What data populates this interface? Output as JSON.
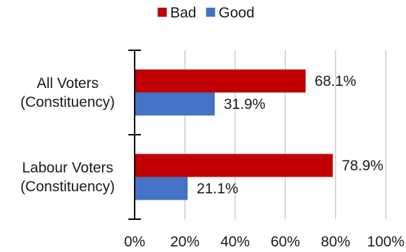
{
  "chart_data": {
    "type": "bar",
    "orientation": "horizontal",
    "categories": [
      [
        "All Voters",
        "(Constituency)"
      ],
      [
        "Labour Voters",
        "(Constituency)"
      ]
    ],
    "series": [
      {
        "name": "Bad",
        "color": "#c00000",
        "values": [
          68.1,
          78.9
        ],
        "labels": [
          "68.1%",
          "78.9%"
        ]
      },
      {
        "name": "Good",
        "color": "#4472c4",
        "values": [
          31.9,
          21.1
        ],
        "labels": [
          "31.9%",
          "21.1%"
        ]
      }
    ],
    "xlim": [
      0,
      100
    ],
    "xticks": [
      0,
      20,
      40,
      60,
      80,
      100
    ],
    "xtick_labels": [
      "0%",
      "20%",
      "40%",
      "60%",
      "80%",
      "100%"
    ],
    "grid": "vertical",
    "legend_position": "top"
  }
}
